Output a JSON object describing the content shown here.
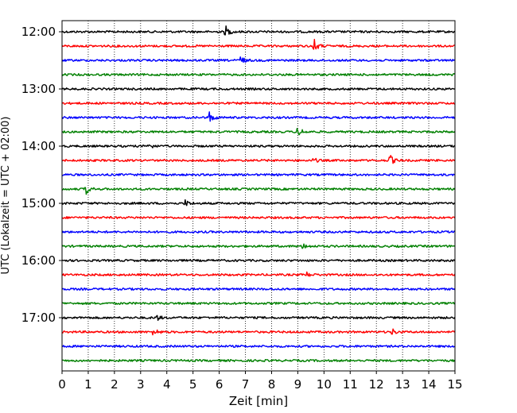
{
  "chart_data": {
    "type": "line",
    "subtype": "helicorder",
    "title": "",
    "xlabel": "Zeit  [min]",
    "ylabel": "UTC (Lokalzeit = UTC + 02:00)",
    "xlim": [
      0,
      15
    ],
    "x_ticks": [
      0,
      1,
      2,
      3,
      4,
      5,
      6,
      7,
      8,
      9,
      10,
      11,
      12,
      13,
      14,
      15
    ],
    "x_tick_labels": [
      "0",
      "1",
      "2",
      "3",
      "4",
      "5",
      "6",
      "7",
      "8",
      "9",
      "10",
      "11",
      "12",
      "13",
      "14",
      "15"
    ],
    "x_grid": "dotted vertical lines at each minute",
    "line_colors_cycle": [
      "#000000",
      "#ff0000",
      "#0000ff",
      "#008000"
    ],
    "y_tick_labels": [
      "12:00",
      "13:00",
      "14:00",
      "15:00",
      "16:00",
      "17:00"
    ],
    "y_tick_trace_index": [
      0,
      4,
      8,
      12,
      16,
      20
    ],
    "traces": [
      {
        "start_utc": "12:00",
        "color": "#000000",
        "events": [
          {
            "minute": 6.25,
            "amp": 7
          }
        ]
      },
      {
        "start_utc": "12:15",
        "color": "#ff0000",
        "events": [
          {
            "minute": 9.6,
            "amp": 10
          }
        ]
      },
      {
        "start_utc": "12:30",
        "color": "#0000ff",
        "events": [
          {
            "minute": 6.8,
            "amp": 6
          }
        ]
      },
      {
        "start_utc": "12:45",
        "color": "#008000",
        "events": []
      },
      {
        "start_utc": "13:00",
        "color": "#000000",
        "events": []
      },
      {
        "start_utc": "13:15",
        "color": "#ff0000",
        "events": []
      },
      {
        "start_utc": "13:30",
        "color": "#0000ff",
        "events": [
          {
            "minute": 5.6,
            "amp": 9
          }
        ]
      },
      {
        "start_utc": "13:45",
        "color": "#008000",
        "events": [
          {
            "minute": 9.0,
            "amp": 8
          }
        ]
      },
      {
        "start_utc": "14:00",
        "color": "#000000",
        "events": [
          {
            "minute": 3.3,
            "amp": 4
          }
        ]
      },
      {
        "start_utc": "14:15",
        "color": "#ff0000",
        "events": [
          {
            "minute": 12.5,
            "amp": 8
          },
          {
            "minute": 9.6,
            "amp": 3
          }
        ]
      },
      {
        "start_utc": "14:30",
        "color": "#0000ff",
        "events": []
      },
      {
        "start_utc": "14:45",
        "color": "#008000",
        "events": [
          {
            "minute": 0.9,
            "amp": 7
          }
        ]
      },
      {
        "start_utc": "15:00",
        "color": "#000000",
        "events": [
          {
            "minute": 4.7,
            "amp": 4
          }
        ]
      },
      {
        "start_utc": "15:15",
        "color": "#ff0000",
        "events": []
      },
      {
        "start_utc": "15:30",
        "color": "#0000ff",
        "events": []
      },
      {
        "start_utc": "15:45",
        "color": "#008000",
        "events": [
          {
            "minute": 9.2,
            "amp": 4
          }
        ]
      },
      {
        "start_utc": "16:00",
        "color": "#000000",
        "events": []
      },
      {
        "start_utc": "16:15",
        "color": "#ff0000",
        "events": [
          {
            "minute": 9.3,
            "amp": 4
          }
        ]
      },
      {
        "start_utc": "16:30",
        "color": "#0000ff",
        "events": []
      },
      {
        "start_utc": "16:45",
        "color": "#008000",
        "events": []
      },
      {
        "start_utc": "17:00",
        "color": "#000000",
        "events": [
          {
            "minute": 3.6,
            "amp": 4
          }
        ]
      },
      {
        "start_utc": "17:15",
        "color": "#ff0000",
        "events": [
          {
            "minute": 3.5,
            "amp": 6
          },
          {
            "minute": 12.6,
            "amp": 4
          }
        ]
      },
      {
        "start_utc": "17:30",
        "color": "#0000ff",
        "events": []
      },
      {
        "start_utc": "17:45",
        "color": "#008000",
        "events": []
      }
    ]
  }
}
